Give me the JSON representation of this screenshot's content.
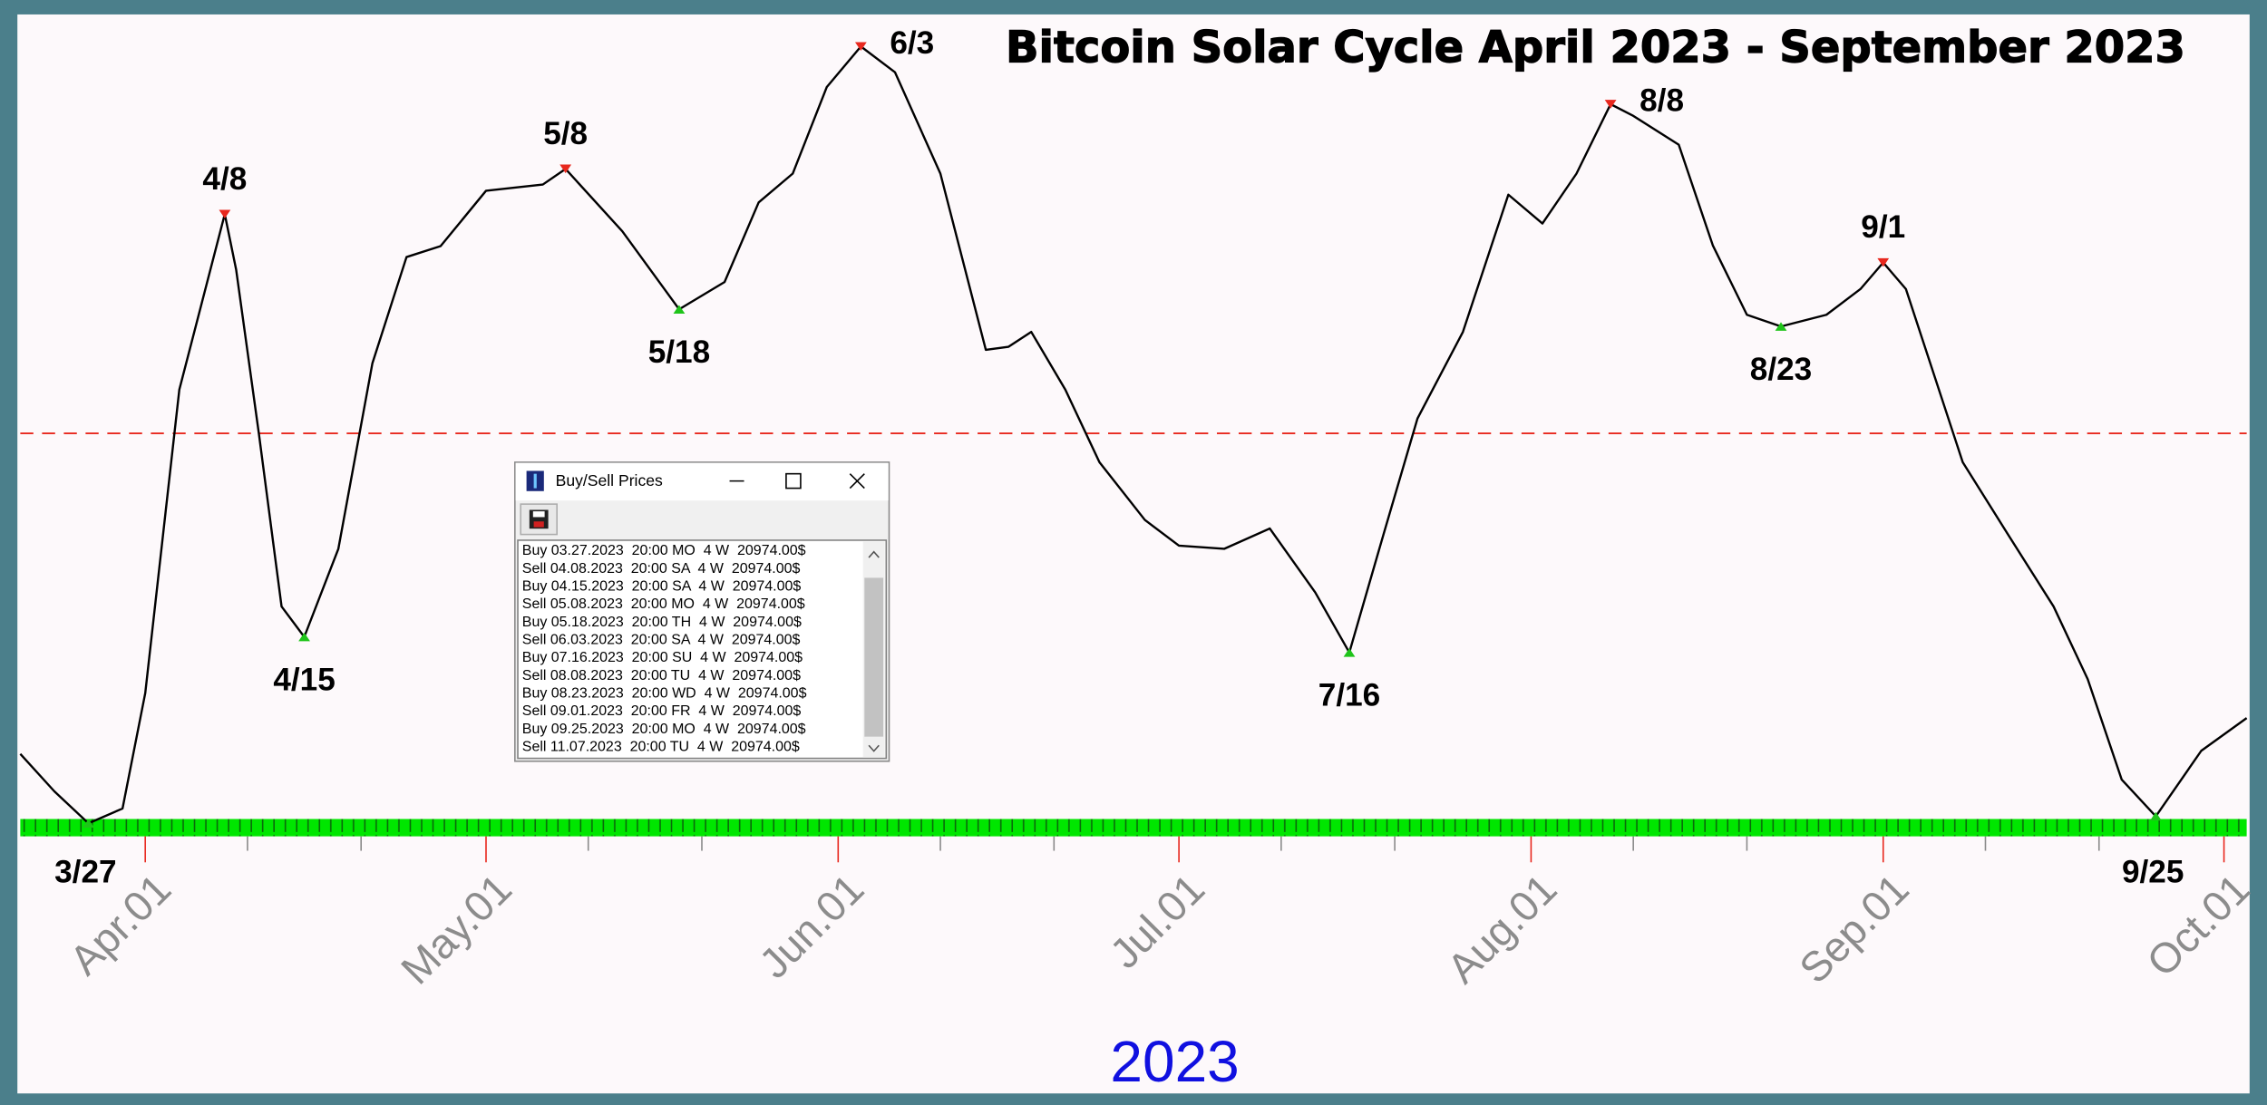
{
  "chart_data": {
    "type": "line",
    "title": "Bitcoin Solar Cycle April 2023 - September 2023",
    "x_label": "2023",
    "xlim": [
      "2023-03-21",
      "2023-10-03"
    ],
    "ylim": [
      0,
      100
    ],
    "xticks": [
      {
        "value": "2023-04-01",
        "label": "Apr.01"
      },
      {
        "value": "2023-05-01",
        "label": "May.01"
      },
      {
        "value": "2023-06-01",
        "label": "Jun.01"
      },
      {
        "value": "2023-07-01",
        "label": "Jul.01"
      },
      {
        "value": "2023-08-01",
        "label": "Aug.01"
      },
      {
        "value": "2023-09-01",
        "label": "Sep.01"
      },
      {
        "value": "2023-10-01",
        "label": "Oct.01"
      }
    ],
    "x_minor_ticks": [
      "2023-04-10",
      "2023-04-20",
      "2023-05-10",
      "2023-05-20",
      "2023-06-10",
      "2023-06-20",
      "2023-07-10",
      "2023-07-20",
      "2023-08-10",
      "2023-08-20",
      "2023-09-10",
      "2023-09-20"
    ],
    "x": [
      "2023-03-21",
      "2023-03-24",
      "2023-03-27",
      "2023-03-30",
      "2023-04-01",
      "2023-04-04",
      "2023-04-08",
      "2023-04-09",
      "2023-04-11",
      "2023-04-13",
      "2023-04-15",
      "2023-04-18",
      "2023-04-21",
      "2023-04-24",
      "2023-04-27",
      "2023-05-01",
      "2023-05-06",
      "2023-05-08",
      "2023-05-13",
      "2023-05-18",
      "2023-05-22",
      "2023-05-25",
      "2023-05-28",
      "2023-05-31",
      "2023-06-03",
      "2023-06-06",
      "2023-06-10",
      "2023-06-14",
      "2023-06-16",
      "2023-06-18",
      "2023-06-21",
      "2023-06-24",
      "2023-06-28",
      "2023-07-01",
      "2023-07-05",
      "2023-07-09",
      "2023-07-13",
      "2023-07-16",
      "2023-07-19",
      "2023-07-22",
      "2023-07-26",
      "2023-07-30",
      "2023-08-02",
      "2023-08-05",
      "2023-08-08",
      "2023-08-10",
      "2023-08-14",
      "2023-08-17",
      "2023-08-20",
      "2023-08-23",
      "2023-08-27",
      "2023-08-30",
      "2023-09-01",
      "2023-09-03",
      "2023-09-08",
      "2023-09-12",
      "2023-09-16",
      "2023-09-19",
      "2023-09-22",
      "2023-09-25",
      "2023-09-29",
      "2023-10-03"
    ],
    "series": [
      {
        "color": "#000000",
        "values": [
          8.9,
          4.1,
          0,
          1.9,
          16.7,
          55.6,
          78.1,
          71,
          50,
          27.8,
          23.9,
          35.2,
          59,
          72.6,
          74,
          81.1,
          81.9,
          83.9,
          75.9,
          65.9,
          69.4,
          79.6,
          83.3,
          94.4,
          99.6,
          96.3,
          83.3,
          60.7,
          61.1,
          63,
          55.6,
          46.3,
          38.9,
          35.6,
          35.2,
          37.8,
          29.6,
          21.9,
          37,
          51.9,
          63,
          80.6,
          76.9,
          83.3,
          92.2,
          90.7,
          87,
          74.1,
          65.2,
          63.7,
          65.2,
          68.5,
          71.9,
          68.5,
          46.3,
          37,
          27.8,
          18.5,
          5.6,
          0.9,
          9.3,
          13.5
        ]
      }
    ],
    "reference_line": {
      "value": 50,
      "color": "#e8281e"
    },
    "top_color": "#e8281e",
    "bottom_color": "#1fc41a",
    "markers": [
      {
        "label": "3/27",
        "date": "2023-03-27",
        "kind": "bottom"
      },
      {
        "label": "4/8",
        "date": "2023-04-08",
        "kind": "top"
      },
      {
        "label": "4/15",
        "date": "2023-04-15",
        "kind": "bottom"
      },
      {
        "label": "5/8",
        "date": "2023-05-08",
        "kind": "top"
      },
      {
        "label": "5/18",
        "date": "2023-05-18",
        "kind": "bottom"
      },
      {
        "label": "6/3",
        "date": "2023-06-03",
        "kind": "top"
      },
      {
        "label": "7/16",
        "date": "2023-07-16",
        "kind": "bottom"
      },
      {
        "label": "8/8",
        "date": "2023-08-08",
        "kind": "top"
      },
      {
        "label": "8/23",
        "date": "2023-08-23",
        "kind": "bottom"
      },
      {
        "label": "9/1",
        "date": "2023-09-01",
        "kind": "top"
      },
      {
        "label": "9/25",
        "date": "2023-09-25",
        "kind": "bottom"
      }
    ]
  },
  "dialog": {
    "title": "Buy/Sell Prices",
    "rows": [
      "Buy 03.27.2023  20:00 MO  4 W  20974.00$",
      "Sell 04.08.2023  20:00 SA  4 W  20974.00$",
      "Buy 04.15.2023  20:00 SA  4 W  20974.00$",
      "Sell 05.08.2023  20:00 MO  4 W  20974.00$",
      "Buy 05.18.2023  20:00 TH  4 W  20974.00$",
      "Sell 06.03.2023  20:00 SA  4 W  20974.00$",
      "Buy 07.16.2023  20:00 SU  4 W  20974.00$",
      "Sell 08.08.2023  20:00 TU  4 W  20974.00$",
      "Buy 08.23.2023  20:00 WD  4 W  20974.00$",
      "Sell 09.01.2023  20:00 FR  4 W  20974.00$",
      "Buy 09.25.2023  20:00 MO  4 W  20974.00$",
      "Sell 11.07.2023  20:00 TU  4 W  20974.00$"
    ]
  }
}
